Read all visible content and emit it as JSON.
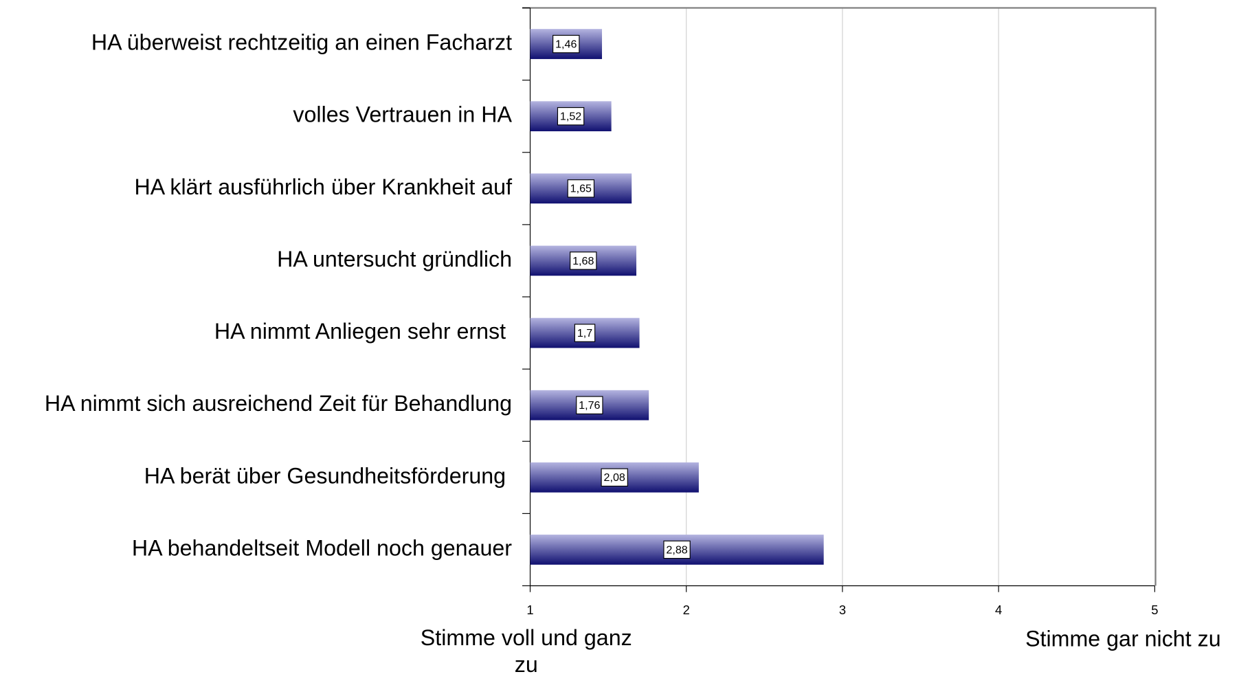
{
  "chart_data": {
    "type": "bar",
    "orientation": "horizontal",
    "categories": [
      "HA überweist rechtzeitig an einen Facharzt",
      "volles Vertrauen in HA",
      "HA klärt ausführlich über Krankheit auf",
      "HA untersucht gründlich",
      "HA nimmt Anliegen sehr ernst ",
      "HA nimmt sich ausreichend Zeit für Behandlung",
      "HA berät über Gesundheitsförderung ",
      "HA behandeltseit Modell noch genauer"
    ],
    "values": [
      1.46,
      1.52,
      1.65,
      1.68,
      1.7,
      1.76,
      2.08,
      2.88
    ],
    "value_labels": [
      "1,46",
      "1,52",
      "1,65",
      "1,68",
      "1,7",
      "1,76",
      "2,08",
      "2,88"
    ],
    "color_top": "#b4b4e0",
    "color_bottom": "#101070",
    "xlim": [
      1,
      5
    ],
    "xticks": [
      1,
      2,
      3,
      4,
      5
    ],
    "grid": true,
    "xlabel_left": "Stimme voll und ganz zu",
    "xlabel_right": "Stimme gar nicht zu"
  }
}
